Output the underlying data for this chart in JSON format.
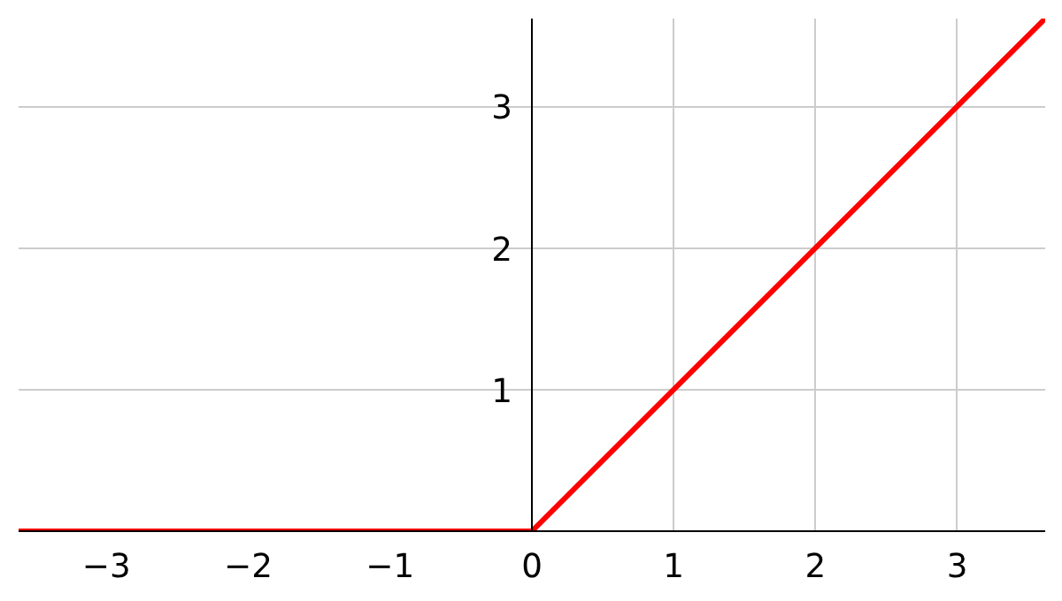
{
  "chart_data": {
    "type": "line",
    "x": [
      -3.62,
      0,
      3.62
    ],
    "series": [
      {
        "color": "#ff0000",
        "values": [
          0,
          0,
          3.62
        ]
      }
    ],
    "xlim": [
      -3.62,
      3.62
    ],
    "ylim": [
      0,
      3.62
    ],
    "xticks": [
      {
        "value": -3,
        "label": "−3"
      },
      {
        "value": -2,
        "label": "−2"
      },
      {
        "value": -1,
        "label": "−1"
      },
      0,
      1,
      2,
      3
    ],
    "yticks": [
      1,
      2,
      3
    ],
    "grid": true,
    "marker": "none",
    "line_style": "solid"
  }
}
